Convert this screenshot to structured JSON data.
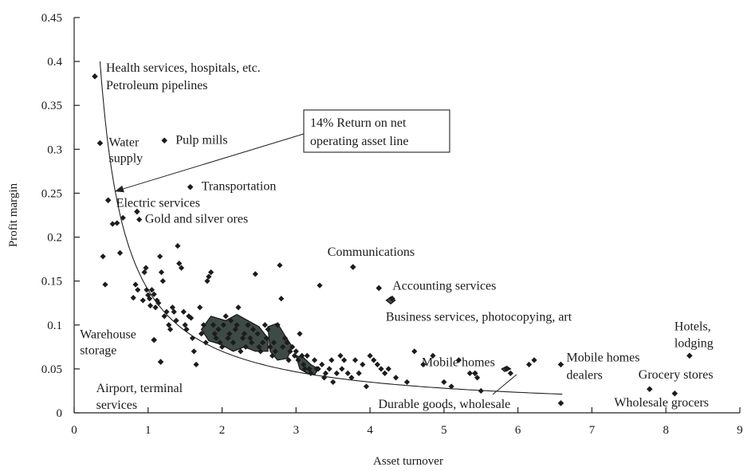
{
  "chart_data": {
    "type": "scatter",
    "title": "",
    "xlabel": "Asset turnover",
    "ylabel": "Profit margin",
    "xlim": [
      0,
      9
    ],
    "ylim": [
      0,
      0.45
    ],
    "x_ticks": [
      "0",
      "1",
      "2",
      "3",
      "4",
      "5",
      "6",
      "7",
      "8",
      "9"
    ],
    "y_ticks": [
      "0",
      "0.05",
      "0.1",
      "0.15",
      "0.2",
      "0.25",
      "0.3",
      "0.35",
      "0.4",
      "0.45"
    ],
    "grid": false,
    "legend": "none",
    "point_color": "#1c1c1c",
    "reference_curve": {
      "equation": "profit_margin = 0.14 / asset_turnover",
      "x_range": [
        0.35,
        6.6
      ]
    },
    "callout": {
      "lines": [
        "14% Return on net",
        "operating asset line"
      ],
      "arrow_to": {
        "x": 0.55,
        "y": 0.252
      }
    },
    "labeled_points": [
      {
        "x": 0.28,
        "y": 0.383,
        "lines": [
          "Health services, hospitals, etc.",
          "Petroleum pipelines"
        ]
      },
      {
        "x": 0.35,
        "y": 0.307,
        "lines": [
          "Water",
          "supply"
        ]
      },
      {
        "x": 1.22,
        "y": 0.31,
        "lines": [
          "Pulp mills"
        ]
      },
      {
        "x": 1.57,
        "y": 0.257,
        "lines": [
          "Transportation"
        ]
      },
      {
        "x": 0.46,
        "y": 0.242,
        "lines": [
          "Electric services"
        ]
      },
      {
        "x": 0.85,
        "y": 0.229,
        "lines": [
          "Gold and silver ores"
        ]
      },
      {
        "x": 3.77,
        "y": 0.166,
        "lines": [
          "Communications"
        ]
      },
      {
        "x": 4.12,
        "y": 0.142,
        "lines": [
          "Accounting services"
        ]
      },
      {
        "x": 4.3,
        "y": 0.13,
        "lines": [
          "Business services, photocopying, art"
        ]
      },
      {
        "x": 1.08,
        "y": 0.083,
        "lines": [
          "Warehouse",
          "storage"
        ]
      },
      {
        "x": 1.17,
        "y": 0.058,
        "lines": [
          "Airport, terminal",
          "services"
        ]
      },
      {
        "x": 5.42,
        "y": 0.045,
        "lines": [
          "Mobile homes"
        ]
      },
      {
        "x": 6.58,
        "y": 0.055,
        "lines": [
          "Mobile homes",
          "dealers"
        ]
      },
      {
        "x": 8.32,
        "y": 0.065,
        "lines": [
          "Hotels,",
          "lodging"
        ]
      },
      {
        "x": 7.78,
        "y": 0.027,
        "lines": [
          "Grocery stores"
        ]
      },
      {
        "x": 8.12,
        "y": 0.022,
        "lines": [
          "Wholesale grocers"
        ]
      },
      {
        "x": 6.58,
        "y": 0.011,
        "lines": [
          "Durable goods, wholesale"
        ]
      }
    ],
    "points": [
      [
        0.39,
        0.178
      ],
      [
        0.42,
        0.146
      ],
      [
        0.52,
        0.215
      ],
      [
        0.58,
        0.216
      ],
      [
        0.62,
        0.182
      ],
      [
        0.66,
        0.222
      ],
      [
        0.8,
        0.131
      ],
      [
        0.83,
        0.146
      ],
      [
        0.86,
        0.14
      ],
      [
        0.88,
        0.22
      ],
      [
        0.93,
        0.128
      ],
      [
        0.95,
        0.16
      ],
      [
        0.97,
        0.165
      ],
      [
        0.98,
        0.14
      ],
      [
        1.0,
        0.134
      ],
      [
        1.02,
        0.13
      ],
      [
        1.03,
        0.122
      ],
      [
        1.05,
        0.14
      ],
      [
        1.08,
        0.135
      ],
      [
        1.1,
        0.12
      ],
      [
        1.12,
        0.128
      ],
      [
        1.14,
        0.125
      ],
      [
        1.16,
        0.178
      ],
      [
        1.18,
        0.16
      ],
      [
        1.2,
        0.15
      ],
      [
        1.22,
        0.11
      ],
      [
        1.25,
        0.115
      ],
      [
        1.28,
        0.1
      ],
      [
        1.3,
        0.095
      ],
      [
        1.33,
        0.12
      ],
      [
        1.35,
        0.115
      ],
      [
        1.38,
        0.105
      ],
      [
        1.4,
        0.19
      ],
      [
        1.42,
        0.17
      ],
      [
        1.45,
        0.165
      ],
      [
        1.48,
        0.115
      ],
      [
        1.5,
        0.1
      ],
      [
        1.52,
        0.095
      ],
      [
        1.55,
        0.11
      ],
      [
        1.58,
        0.108
      ],
      [
        1.6,
        0.085
      ],
      [
        1.62,
        0.07
      ],
      [
        1.65,
        0.055
      ],
      [
        1.7,
        0.12
      ],
      [
        1.72,
        0.09
      ],
      [
        1.75,
        0.1
      ],
      [
        1.78,
        0.08
      ],
      [
        1.8,
        0.15
      ],
      [
        1.82,
        0.155
      ],
      [
        1.85,
        0.16
      ],
      [
        1.88,
        0.1
      ],
      [
        1.9,
        0.09
      ],
      [
        1.92,
        0.085
      ],
      [
        1.95,
        0.095
      ],
      [
        1.97,
        0.08
      ],
      [
        2.0,
        0.075
      ],
      [
        2.02,
        0.1
      ],
      [
        2.05,
        0.11
      ],
      [
        2.08,
        0.085
      ],
      [
        2.1,
        0.09
      ],
      [
        2.12,
        0.105
      ],
      [
        2.15,
        0.08
      ],
      [
        2.18,
        0.095
      ],
      [
        2.2,
        0.1
      ],
      [
        2.22,
        0.12
      ],
      [
        2.25,
        0.07
      ],
      [
        2.28,
        0.085
      ],
      [
        2.3,
        0.09
      ],
      [
        2.32,
        0.075
      ],
      [
        2.35,
        0.1
      ],
      [
        2.38,
        0.085
      ],
      [
        2.4,
        0.08
      ],
      [
        2.42,
        0.095
      ],
      [
        2.45,
        0.158
      ],
      [
        2.48,
        0.09
      ],
      [
        2.5,
        0.075
      ],
      [
        2.52,
        0.07
      ],
      [
        2.55,
        0.08
      ],
      [
        2.58,
        0.1
      ],
      [
        2.6,
        0.085
      ],
      [
        2.62,
        0.095
      ],
      [
        2.65,
        0.075
      ],
      [
        2.68,
        0.065
      ],
      [
        2.7,
        0.08
      ],
      [
        2.72,
        0.07
      ],
      [
        2.75,
        0.1
      ],
      [
        2.78,
        0.168
      ],
      [
        2.8,
        0.13
      ],
      [
        2.82,
        0.075
      ],
      [
        2.85,
        0.085
      ],
      [
        2.88,
        0.08
      ],
      [
        2.9,
        0.06
      ],
      [
        2.92,
        0.07
      ],
      [
        2.95,
        0.075
      ],
      [
        2.98,
        0.065
      ],
      [
        3.0,
        0.07
      ],
      [
        3.03,
        0.06
      ],
      [
        3.05,
        0.09
      ],
      [
        3.08,
        0.065
      ],
      [
        3.1,
        0.055
      ],
      [
        3.12,
        0.05
      ],
      [
        3.15,
        0.065
      ],
      [
        3.18,
        0.05
      ],
      [
        3.2,
        0.045
      ],
      [
        3.25,
        0.06
      ],
      [
        3.28,
        0.05
      ],
      [
        3.3,
        0.05
      ],
      [
        3.32,
        0.145
      ],
      [
        3.35,
        0.055
      ],
      [
        3.38,
        0.04
      ],
      [
        3.4,
        0.045
      ],
      [
        3.45,
        0.05
      ],
      [
        3.48,
        0.06
      ],
      [
        3.5,
        0.035
      ],
      [
        3.55,
        0.045
      ],
      [
        3.6,
        0.065
      ],
      [
        3.62,
        0.05
      ],
      [
        3.65,
        0.06
      ],
      [
        3.7,
        0.045
      ],
      [
        3.75,
        0.04
      ],
      [
        3.8,
        0.06
      ],
      [
        3.85,
        0.045
      ],
      [
        3.9,
        0.055
      ],
      [
        3.95,
        0.03
      ],
      [
        4.0,
        0.065
      ],
      [
        4.05,
        0.06
      ],
      [
        4.1,
        0.055
      ],
      [
        4.15,
        0.05
      ],
      [
        4.2,
        0.045
      ],
      [
        4.25,
        0.05
      ],
      [
        4.35,
        0.04
      ],
      [
        4.5,
        0.035
      ],
      [
        4.6,
        0.07
      ],
      [
        4.72,
        0.055
      ],
      [
        4.85,
        0.065
      ],
      [
        5.0,
        0.035
      ],
      [
        5.1,
        0.03
      ],
      [
        5.2,
        0.06
      ],
      [
        5.35,
        0.045
      ],
      [
        5.45,
        0.04
      ],
      [
        5.5,
        0.025
      ],
      [
        5.85,
        0.05
      ],
      [
        5.9,
        0.045
      ],
      [
        6.15,
        0.055
      ],
      [
        6.22,
        0.06
      ]
    ],
    "cluster_blobs": [
      [
        [
          1.72,
          0.095
        ],
        [
          1.85,
          0.11
        ],
        [
          2.05,
          0.105
        ],
        [
          2.2,
          0.112
        ],
        [
          2.35,
          0.105
        ],
        [
          2.5,
          0.098
        ],
        [
          2.62,
          0.085
        ],
        [
          2.62,
          0.07
        ],
        [
          2.45,
          0.07
        ],
        [
          2.3,
          0.075
        ],
        [
          2.15,
          0.07
        ],
        [
          1.98,
          0.078
        ],
        [
          1.82,
          0.082
        ]
      ],
      [
        [
          2.62,
          0.098
        ],
        [
          2.75,
          0.102
        ],
        [
          2.85,
          0.088
        ],
        [
          2.95,
          0.075
        ],
        [
          2.88,
          0.062
        ],
        [
          2.75,
          0.06
        ],
        [
          2.65,
          0.07
        ]
      ],
      [
        [
          3.0,
          0.065
        ],
        [
          3.1,
          0.063
        ],
        [
          3.2,
          0.055
        ],
        [
          3.3,
          0.05
        ],
        [
          3.25,
          0.043
        ],
        [
          3.15,
          0.045
        ],
        [
          3.05,
          0.05
        ]
      ],
      [
        [
          4.28,
          0.132
        ],
        [
          4.34,
          0.128
        ],
        [
          4.28,
          0.124
        ],
        [
          4.22,
          0.128
        ]
      ],
      [
        [
          5.85,
          0.053
        ],
        [
          5.9,
          0.05
        ],
        [
          5.82,
          0.047
        ],
        [
          5.78,
          0.05
        ]
      ]
    ]
  }
}
